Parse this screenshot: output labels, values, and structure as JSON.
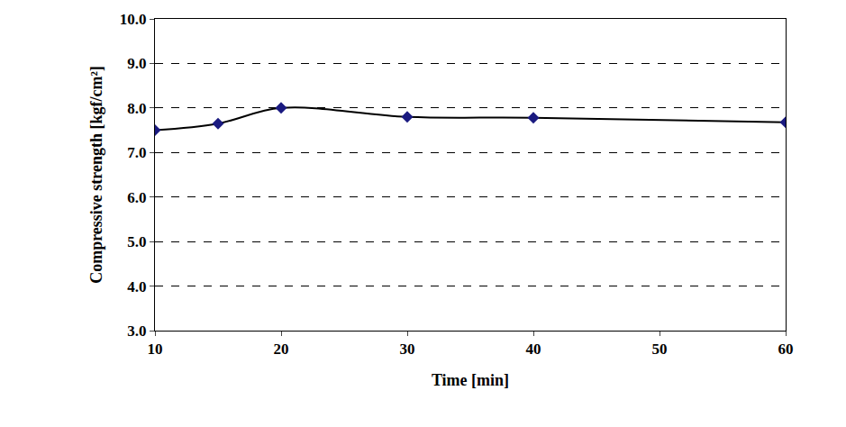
{
  "chart_data": {
    "type": "line",
    "x_label": "Time [min]",
    "y_label": "Compressive strength [kgf/cm²]",
    "x": [
      10,
      15,
      20,
      30,
      40,
      60
    ],
    "values": [
      7.5,
      7.65,
      8.0,
      7.8,
      7.78,
      7.68
    ],
    "color": "#1a1a80",
    "marker": "diamond",
    "line_style": "smooth",
    "xlim": [
      10,
      60
    ],
    "xticks": [
      10,
      20,
      30,
      40,
      50,
      60
    ],
    "ylim": [
      3,
      10
    ],
    "yticks": [
      {
        "value": 3,
        "label": "3.0"
      },
      {
        "value": 4,
        "label": "4.0"
      },
      {
        "value": 5,
        "label": "5.0"
      },
      {
        "value": 6,
        "label": "6.0"
      },
      {
        "value": 7,
        "label": "7.0"
      },
      {
        "value": 8,
        "label": "8.0"
      },
      {
        "value": 9,
        "label": "9.0"
      },
      {
        "value": 10,
        "label": "10.0"
      }
    ],
    "grid": true
  }
}
